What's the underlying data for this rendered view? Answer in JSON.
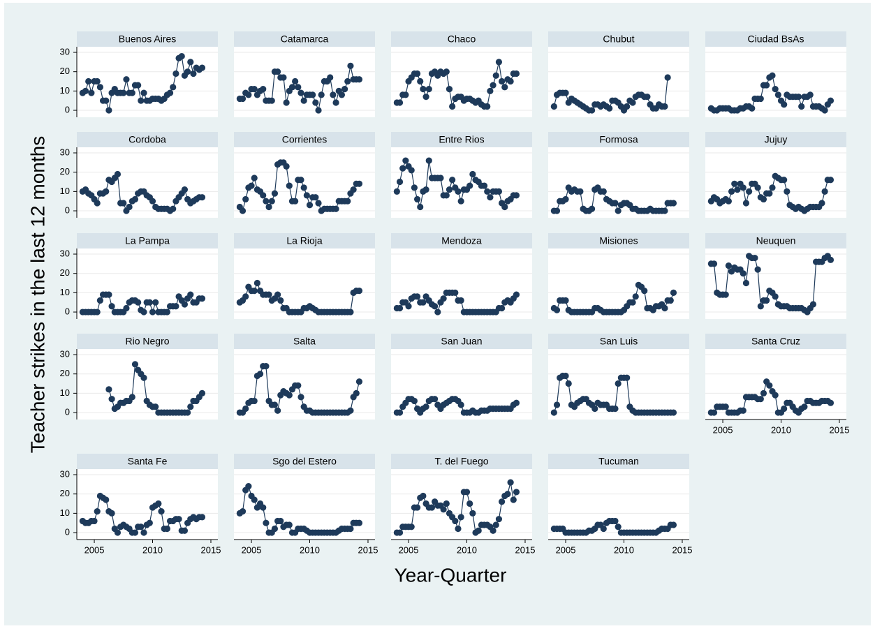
{
  "chart_data": {
    "type": "line",
    "xlabel": "Year-Quarter",
    "ylabel": "Teacher strikes in the last 12 months",
    "color": "#1e3a5a",
    "xlim": [
      2003.5,
      2015.6
    ],
    "xticks": [
      2005,
      2010,
      2015
    ],
    "ylim": [
      -3.6,
      32.9
    ],
    "yticks": [
      0,
      10,
      20,
      30
    ],
    "grid": true,
    "x": [
      2004,
      2004.25,
      2004.5,
      2004.75,
      2005,
      2005.25,
      2005.5,
      2005.75,
      2006,
      2006.25,
      2006.5,
      2006.75,
      2007,
      2007.25,
      2007.5,
      2007.75,
      2008,
      2008.25,
      2008.5,
      2008.75,
      2009,
      2009.25,
      2009.5,
      2009.75,
      2010,
      2010.25,
      2010.5,
      2010.75,
      2011,
      2011.25,
      2011.5,
      2011.75,
      2012,
      2012.25,
      2012.5,
      2012.75,
      2013,
      2013.25,
      2013.5,
      2013.75,
      2014,
      2014.25
    ],
    "panels": [
      {
        "title": "Buenos Aires",
        "values": [
          9,
          10,
          15,
          9,
          15,
          15,
          12,
          5,
          5,
          0,
          9,
          11,
          9,
          9,
          9,
          16,
          9,
          9,
          13,
          13,
          5,
          9,
          5,
          5,
          6,
          6,
          6,
          5,
          6,
          8,
          9,
          12,
          19,
          27,
          28,
          18,
          20,
          25,
          19,
          22,
          21,
          22
        ]
      },
      {
        "title": "Catamarca",
        "values": [
          6,
          6,
          9,
          8,
          11,
          11,
          8,
          10,
          11,
          5,
          5,
          5,
          20,
          20,
          17,
          17,
          4,
          10,
          12,
          15,
          12,
          9,
          5,
          8,
          8,
          8,
          4,
          0,
          8,
          15,
          15,
          17,
          8,
          4,
          10,
          8,
          11,
          15,
          23,
          16,
          16,
          16
        ]
      },
      {
        "title": "Chaco",
        "values": [
          4,
          4,
          8,
          8,
          15,
          17,
          19,
          19,
          15,
          11,
          7,
          11,
          19,
          20,
          18,
          20,
          19,
          20,
          11,
          2,
          6,
          7,
          7,
          5,
          6,
          6,
          5,
          4,
          5,
          3,
          2,
          2,
          10,
          13,
          18,
          25,
          15,
          12,
          16,
          15,
          19,
          19
        ]
      },
      {
        "title": "Chubut",
        "values": [
          2,
          8,
          9,
          9,
          9,
          4,
          6,
          5,
          4,
          3,
          2,
          1,
          0,
          0,
          3,
          3,
          2,
          3,
          2,
          1,
          5,
          5,
          4,
          2,
          0,
          2,
          5,
          4,
          7,
          8,
          8,
          7,
          7,
          3,
          1,
          1,
          3,
          2,
          2,
          17,
          null,
          null
        ]
      },
      {
        "title": "Ciudad BsAs",
        "values": [
          1,
          0,
          0,
          1,
          1,
          1,
          1,
          0,
          0,
          0,
          1,
          1,
          2,
          2,
          1,
          6,
          6,
          6,
          13,
          13,
          17,
          18,
          11,
          8,
          5,
          3,
          8,
          7,
          7,
          7,
          7,
          2,
          7,
          7,
          8,
          2,
          2,
          2,
          1,
          0,
          3,
          5
        ]
      },
      {
        "title": "Cordoba",
        "values": [
          10,
          11,
          9,
          8,
          6,
          4,
          9,
          9,
          10,
          16,
          15,
          17,
          19,
          4,
          4,
          0,
          2,
          5,
          6,
          9,
          10,
          10,
          8,
          7,
          5,
          2,
          1,
          1,
          1,
          1,
          0,
          1,
          5,
          7,
          9,
          11,
          6,
          4,
          5,
          6,
          7,
          7
        ]
      },
      {
        "title": "Corrientes",
        "values": [
          2,
          0,
          6,
          12,
          13,
          17,
          11,
          10,
          8,
          5,
          2,
          5,
          9,
          24,
          25,
          25,
          23,
          13,
          5,
          5,
          16,
          16,
          12,
          8,
          3,
          7,
          7,
          4,
          0,
          1,
          1,
          1,
          1,
          1,
          5,
          5,
          5,
          5,
          9,
          11,
          14,
          14
        ]
      },
      {
        "title": "Entre Rios",
        "values": [
          10,
          15,
          22,
          26,
          23,
          21,
          12,
          6,
          2,
          10,
          11,
          26,
          17,
          17,
          17,
          17,
          8,
          8,
          11,
          16,
          12,
          10,
          5,
          11,
          11,
          13,
          19,
          16,
          15,
          13,
          13,
          10,
          7,
          10,
          10,
          10,
          4,
          2,
          5,
          6,
          8,
          8
        ]
      },
      {
        "title": "Formosa",
        "values": [
          0,
          0,
          5,
          5,
          6,
          12,
          10,
          11,
          10,
          10,
          1,
          0,
          0,
          1,
          11,
          12,
          10,
          10,
          6,
          5,
          4,
          4,
          0,
          3,
          4,
          4,
          3,
          1,
          1,
          0,
          0,
          0,
          0,
          1,
          0,
          0,
          0,
          0,
          0,
          4,
          4,
          4
        ]
      },
      {
        "title": "Jujuy",
        "values": [
          5,
          7,
          6,
          4,
          5,
          6,
          5,
          10,
          14,
          11,
          14,
          12,
          4,
          10,
          14,
          14,
          12,
          7,
          6,
          9,
          9,
          12,
          18,
          17,
          16,
          16,
          10,
          3,
          2,
          1,
          2,
          1,
          0,
          1,
          2,
          2,
          2,
          2,
          4,
          10,
          16,
          16
        ]
      },
      {
        "title": "La Pampa",
        "values": [
          0,
          0,
          0,
          0,
          0,
          0,
          6,
          9,
          9,
          9,
          3,
          0,
          0,
          0,
          0,
          2,
          5,
          6,
          6,
          5,
          1,
          0,
          5,
          5,
          0,
          5,
          0,
          0,
          0,
          0,
          3,
          3,
          3,
          8,
          6,
          4,
          7,
          9,
          5,
          5,
          7,
          7
        ]
      },
      {
        "title": "La Rioja",
        "values": [
          5,
          6,
          8,
          13,
          11,
          11,
          15,
          11,
          9,
          9,
          9,
          6,
          7,
          9,
          6,
          2,
          2,
          0,
          0,
          0,
          0,
          0,
          2,
          2,
          3,
          2,
          1,
          0,
          0,
          0,
          0,
          0,
          0,
          0,
          0,
          0,
          0,
          0,
          0,
          10,
          11,
          11
        ]
      },
      {
        "title": "Mendoza",
        "values": [
          2,
          2,
          5,
          5,
          3,
          7,
          8,
          8,
          5,
          5,
          8,
          6,
          4,
          3,
          0,
          5,
          7,
          10,
          10,
          10,
          10,
          6,
          6,
          0,
          0,
          0,
          0,
          0,
          0,
          0,
          0,
          0,
          0,
          0,
          0,
          2,
          2,
          5,
          6,
          5,
          7,
          9
        ]
      },
      {
        "title": "Misiones",
        "values": [
          2,
          1,
          6,
          6,
          6,
          1,
          0,
          0,
          0,
          0,
          0,
          0,
          0,
          0,
          2,
          2,
          1,
          0,
          0,
          0,
          0,
          0,
          0,
          0,
          1,
          3,
          5,
          5,
          8,
          14,
          13,
          11,
          2,
          2,
          1,
          3,
          3,
          4,
          2,
          6,
          6,
          10
        ]
      },
      {
        "title": "Neuquen",
        "values": [
          25,
          25,
          10,
          9,
          9,
          9,
          24,
          21,
          23,
          22,
          22,
          20,
          15,
          29,
          28,
          28,
          22,
          3,
          6,
          6,
          11,
          10,
          8,
          4,
          3,
          3,
          3,
          2,
          2,
          2,
          2,
          2,
          1,
          0,
          2,
          4,
          26,
          26,
          26,
          28,
          29,
          27
        ]
      },
      {
        "title": "Rio Negro",
        "values": [
          null,
          null,
          null,
          null,
          null,
          null,
          null,
          null,
          null,
          12,
          7,
          2,
          3,
          5,
          5,
          6,
          6,
          8,
          25,
          22,
          20,
          18,
          6,
          4,
          3,
          3,
          0,
          0,
          0,
          0,
          0,
          0,
          0,
          0,
          0,
          0,
          0,
          3,
          6,
          6,
          8,
          10
        ]
      },
      {
        "title": "Salta",
        "values": [
          0,
          0,
          2,
          5,
          6,
          6,
          19,
          20,
          24,
          24,
          6,
          4,
          4,
          1,
          9,
          11,
          10,
          9,
          12,
          14,
          14,
          8,
          3,
          1,
          1,
          0,
          0,
          0,
          0,
          0,
          0,
          0,
          0,
          0,
          0,
          0,
          0,
          0,
          1,
          8,
          10,
          16
        ]
      },
      {
        "title": "San Juan",
        "values": [
          0,
          0,
          3,
          5,
          7,
          7,
          6,
          2,
          0,
          2,
          3,
          6,
          7,
          7,
          4,
          2,
          4,
          5,
          6,
          7,
          7,
          6,
          4,
          0,
          0,
          0,
          1,
          0,
          0,
          1,
          1,
          1,
          2,
          2,
          2,
          2,
          2,
          2,
          2,
          2,
          4,
          5
        ]
      },
      {
        "title": "San Luis",
        "values": [
          0,
          4,
          18,
          19,
          19,
          15,
          4,
          3,
          5,
          6,
          7,
          7,
          5,
          4,
          2,
          5,
          4,
          4,
          4,
          2,
          2,
          2,
          15,
          18,
          18,
          18,
          3,
          1,
          0,
          0,
          0,
          0,
          0,
          0,
          0,
          0,
          0,
          0,
          0,
          0,
          0,
          0
        ]
      },
      {
        "title": "Santa Cruz",
        "values": [
          0,
          0,
          3,
          3,
          3,
          3,
          0,
          0,
          0,
          0,
          1,
          1,
          8,
          8,
          8,
          8,
          7,
          7,
          10,
          16,
          14,
          11,
          9,
          0,
          0,
          2,
          5,
          5,
          3,
          1,
          0,
          2,
          3,
          6,
          6,
          5,
          5,
          5,
          6,
          6,
          6,
          5
        ]
      },
      {
        "title": "Santa Fe",
        "values": [
          6,
          5,
          5,
          6,
          6,
          11,
          19,
          18,
          17,
          11,
          10,
          2,
          0,
          3,
          4,
          3,
          2,
          0,
          0,
          3,
          3,
          0,
          4,
          5,
          13,
          14,
          15,
          11,
          2,
          2,
          6,
          6,
          7,
          7,
          1,
          1,
          5,
          7,
          8,
          7,
          8,
          8
        ]
      },
      {
        "title": "Sgo del Estero",
        "values": [
          10,
          11,
          22,
          24,
          19,
          17,
          13,
          15,
          13,
          5,
          0,
          0,
          2,
          6,
          6,
          3,
          4,
          4,
          0,
          0,
          2,
          2,
          2,
          1,
          0,
          0,
          0,
          0,
          0,
          0,
          0,
          0,
          0,
          0,
          1,
          2,
          2,
          2,
          2,
          5,
          5,
          5
        ]
      },
      {
        "title": "T. del Fuego",
        "values": [
          0,
          0,
          3,
          3,
          3,
          3,
          13,
          13,
          18,
          19,
          15,
          13,
          13,
          16,
          14,
          14,
          12,
          15,
          10,
          8,
          6,
          2,
          8,
          21,
          21,
          15,
          10,
          0,
          1,
          4,
          4,
          4,
          3,
          1,
          4,
          7,
          16,
          19,
          20,
          26,
          17,
          21
        ]
      },
      {
        "title": "Tucuman",
        "values": [
          2,
          2,
          2,
          2,
          0,
          0,
          0,
          0,
          0,
          0,
          0,
          0,
          1,
          1,
          2,
          4,
          4,
          2,
          5,
          6,
          6,
          6,
          3,
          0,
          0,
          0,
          0,
          0,
          0,
          0,
          0,
          0,
          0,
          0,
          0,
          0,
          1,
          2,
          2,
          2,
          4,
          4
        ]
      }
    ]
  }
}
